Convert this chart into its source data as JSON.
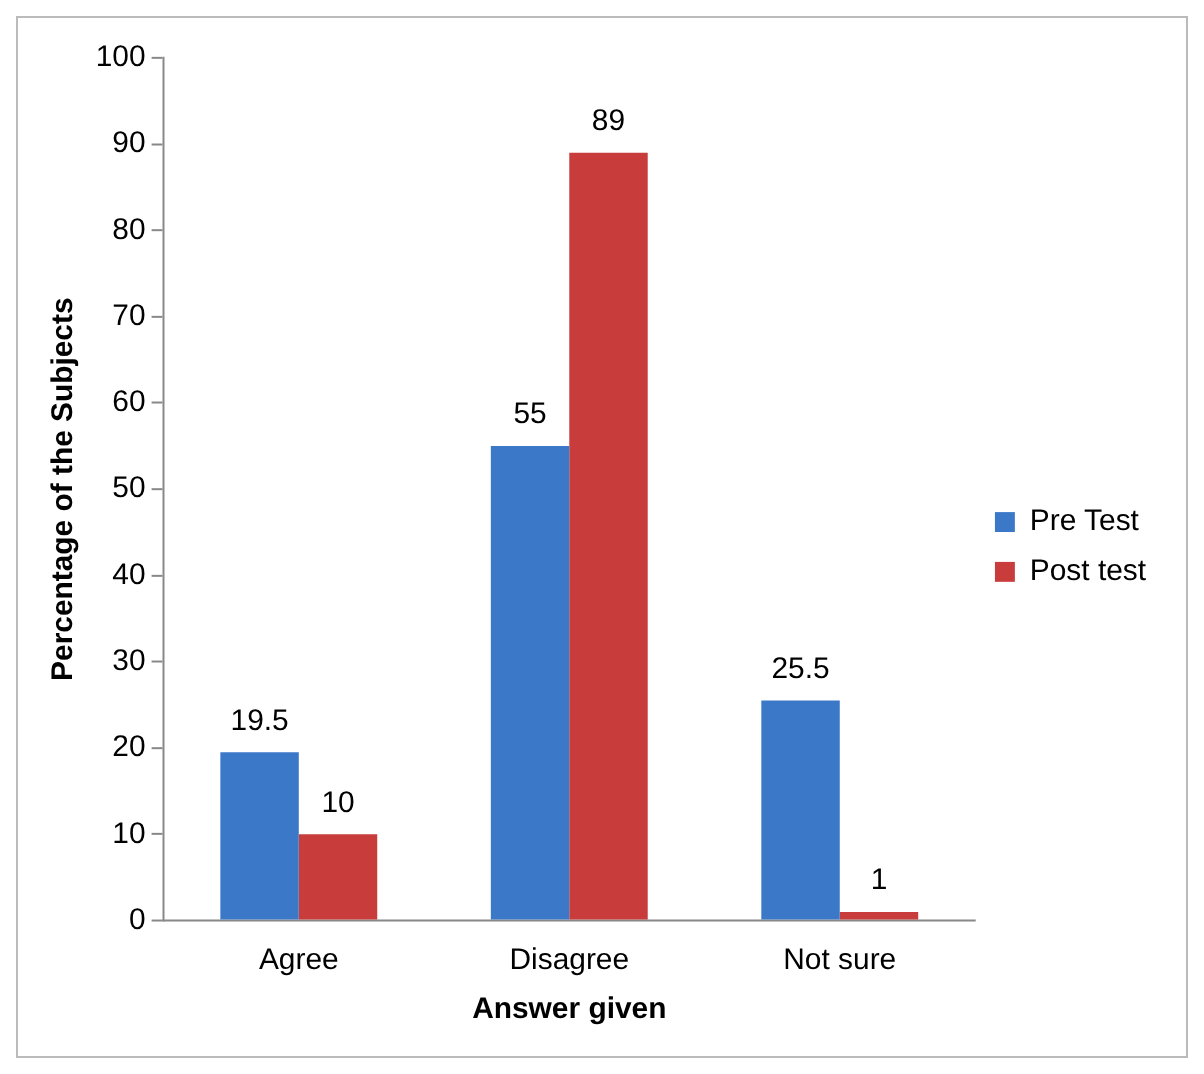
{
  "chart_data": {
    "type": "bar",
    "xlabel": "Answer given",
    "ylabel": "Percentage of the Subjects",
    "categories": [
      "Agree",
      "Disagree",
      "Not sure"
    ],
    "series": [
      {
        "name": "Pre Test",
        "color": "#3c78c8",
        "values": [
          19.5,
          55,
          25.5
        ]
      },
      {
        "name": "Post test",
        "color": "#c83c3c",
        "values": [
          10,
          89,
          1
        ]
      }
    ],
    "ylim": [
      0,
      100
    ],
    "yticks": [
      0,
      10,
      20,
      30,
      40,
      50,
      60,
      70,
      80,
      90,
      100
    ],
    "grid": false,
    "legend": "right",
    "data_labels": true
  }
}
